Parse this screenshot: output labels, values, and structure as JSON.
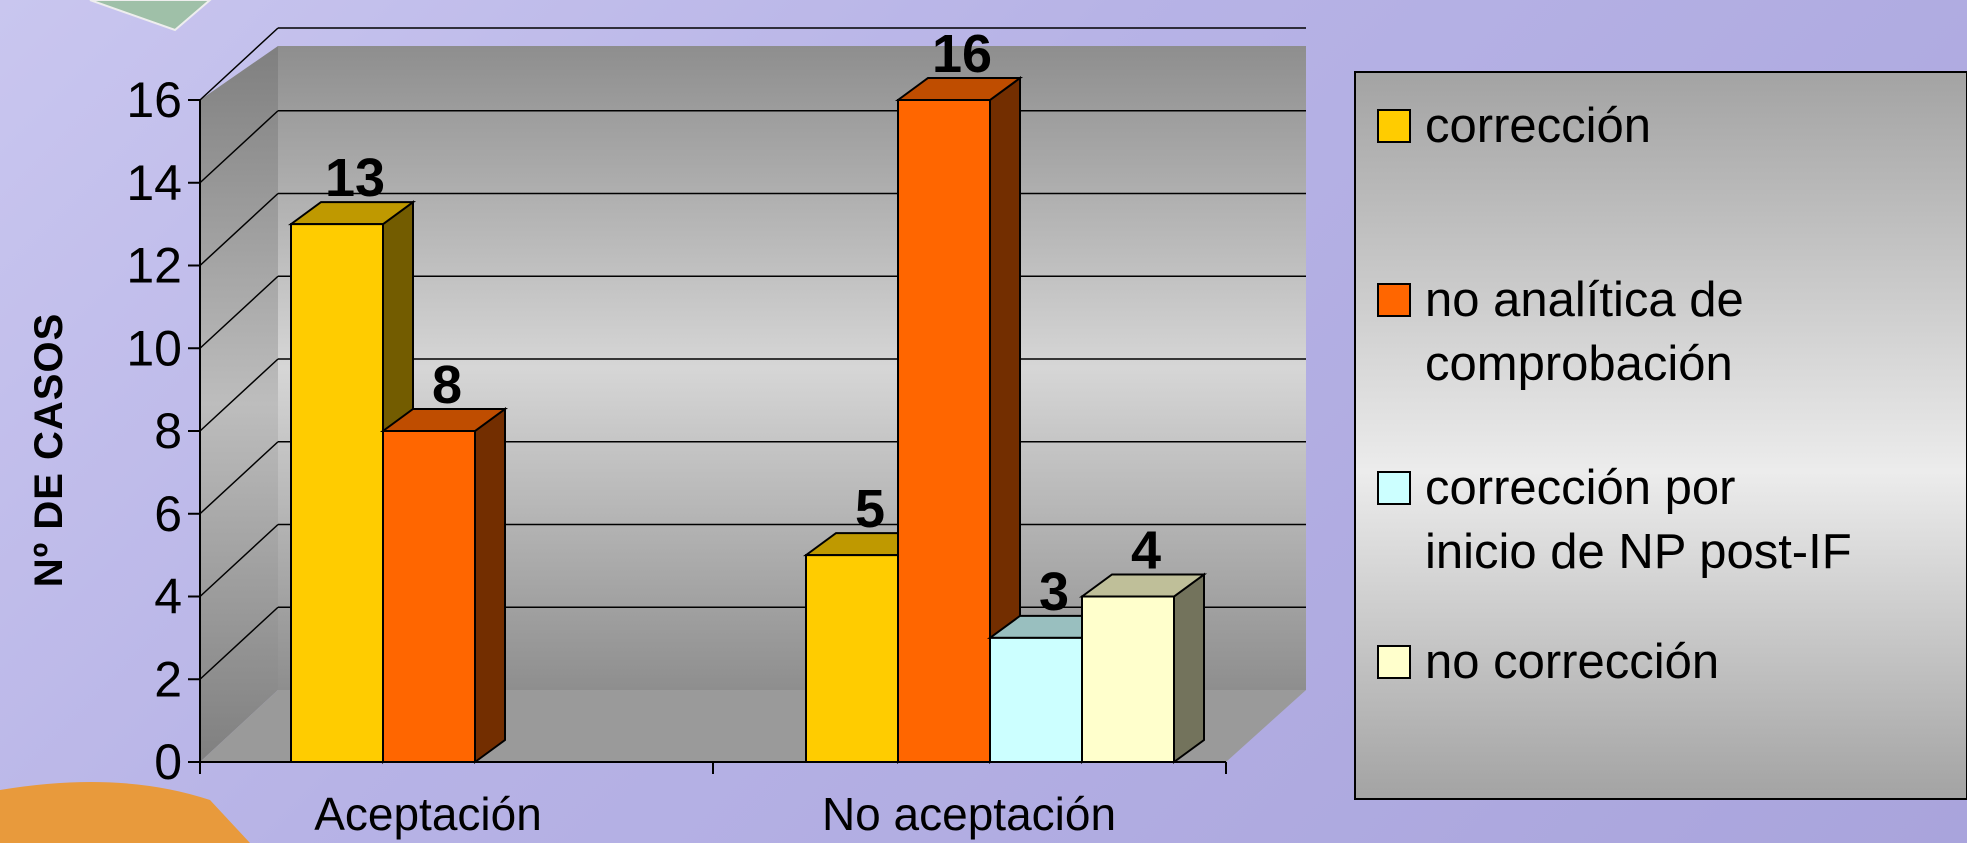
{
  "colors": {
    "correccion": "#FFCC00",
    "no_analitica": "#FF6600",
    "correccion_por_inicio": "#CCFFFF",
    "no_correccion": "#FFFFCC"
  },
  "chart_data": {
    "type": "bar",
    "title": "",
    "ylabel": "Nº DE CASOS",
    "xlabel": "",
    "ylim": [
      0,
      16
    ],
    "yticks": [
      "0",
      "2",
      "4",
      "6",
      "8",
      "10",
      "12",
      "14",
      "16"
    ],
    "grid": true,
    "legend_position": "right",
    "legend": [
      {
        "lines": [
          "corrección"
        ]
      },
      {
        "lines": [
          "no analítica de",
          "comprobación"
        ]
      },
      {
        "lines": [
          "corrección por",
          "inicio de NP post-IF"
        ]
      },
      {
        "lines": [
          "no corrección"
        ]
      }
    ],
    "categories": [
      {
        "label": "Aceptación",
        "bars": [
          {
            "series": "corrección",
            "value": 13,
            "label": "13"
          },
          {
            "series": "no analítica de comprobación",
            "value": 8,
            "label": "8"
          }
        ]
      },
      {
        "label": "No aceptación",
        "bars": [
          {
            "series": "corrección",
            "value": 5,
            "label": "5"
          },
          {
            "series": "no analítica de comprobación",
            "value": 16,
            "label": "16"
          },
          {
            "series": "corrección por inicio de NP post-IF",
            "value": 3,
            "label": "3"
          },
          {
            "series": "no corrección",
            "value": 4,
            "label": "4"
          }
        ]
      }
    ]
  }
}
